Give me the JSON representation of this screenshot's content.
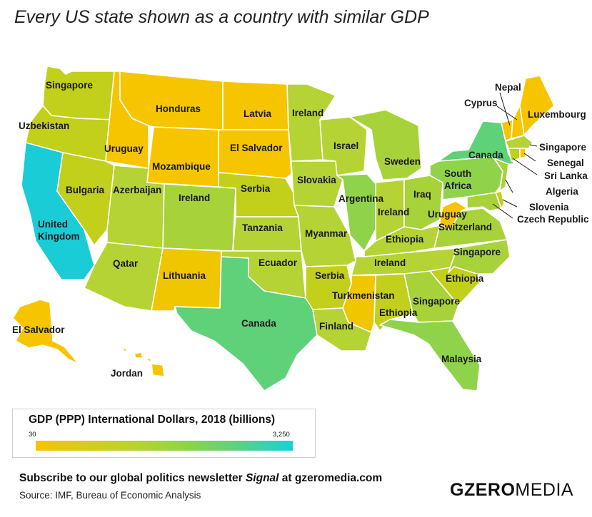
{
  "title": "Every US state shown as a country with similar GDP",
  "colors": {
    "low": "#f7c400",
    "lowmid": "#c2cf1b",
    "mid": "#a8d23a",
    "midhigh": "#8fd34a",
    "green": "#5fd179",
    "high": "#19ccd6"
  },
  "labels": {
    "wa": "Singapore",
    "or": "Uzbekistan",
    "ca": "United Kingdom",
    "ca1": "United",
    "ca2": "Kingdom",
    "id": "Uruguay",
    "nv": "Bulgaria",
    "mt": "Honduras",
    "wy": "Mozambique",
    "ut": "Azerbaijan",
    "az": "Qatar",
    "co": "Ireland",
    "nm": "Lithuania",
    "nd": "Latvia",
    "sd": "El Salvador",
    "ne": "Serbia",
    "ks": "Tanzania",
    "ok": "Ecuador",
    "tx": "Canada",
    "mn": "Ireland",
    "ia": "Slovakia",
    "mo": "Myanmar",
    "ar": "Serbia",
    "la": "Finland",
    "wi": "Israel",
    "il": "Argentina",
    "mi": "Sweden",
    "in": "Ireland",
    "oh": "Iraq",
    "ky": "Ethiopia",
    "tn": "Ireland",
    "ms": "Turkmenistan",
    "al": "Ethiopia",
    "ga": "Singapore",
    "fl": "Malaysia",
    "sc": "Ethiopia",
    "nc": "Singapore",
    "va": "Switzerland",
    "wv": "Uruguay",
    "pa": "South Africa",
    "pa1": "South",
    "pa2": "Africa",
    "ny": "Canada",
    "me": "Luxembourg",
    "vt": "Nepal",
    "nh": "Cyprus",
    "ma": "Singapore",
    "ri": "Senegal",
    "ct": "Sri Lanka",
    "nj": "Algeria",
    "de": "Slovenia",
    "md": "Czech Republic",
    "ak": "El Salvador",
    "hi": "Jordan"
  },
  "legend": {
    "title": "GDP (PPP) International Dollars, 2018 (billions)",
    "min": "30",
    "max": "3,250"
  },
  "footer": {
    "line1_pre": "Subscribe to our global politics newsletter ",
    "line1_em": "Signal",
    "line1_post": " at gzeromedia.com",
    "source": "Source: IMF, Bureau of Economic Analysis"
  },
  "brand": {
    "bold": "GZERO",
    "light": "MEDIA"
  }
}
